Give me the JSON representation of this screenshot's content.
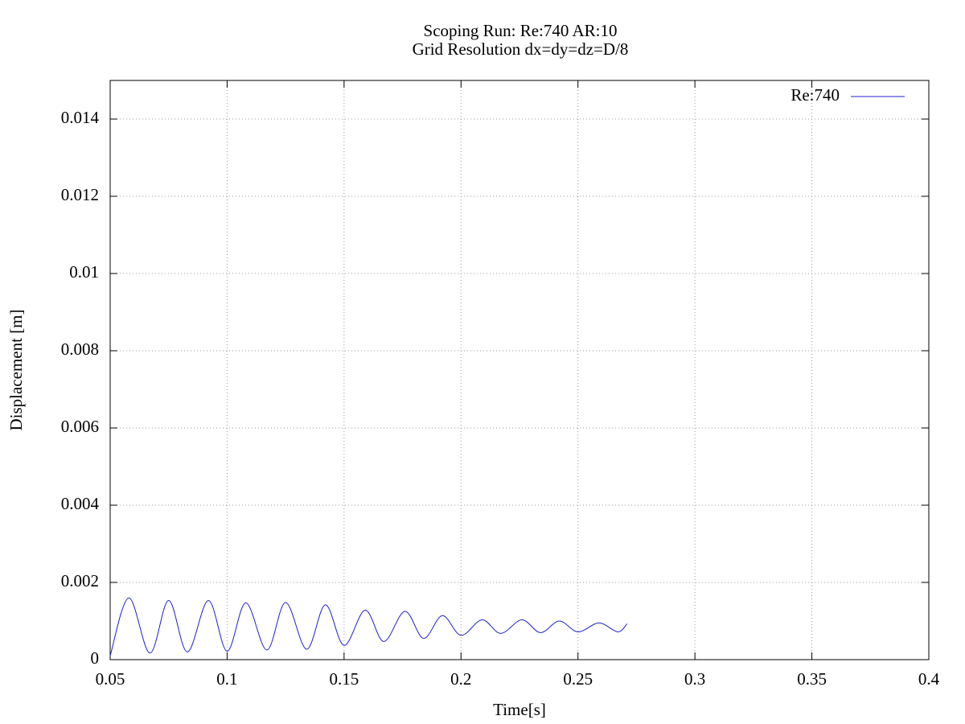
{
  "chart_data": {
    "type": "line",
    "title": "Scoping Run: Re:740  AR:10",
    "subtitle": "Grid Resolution dx=dy=dz=D/8",
    "x_label": "Time[s]",
    "y_label": "Displacement [m]",
    "x": [
      0.05,
      0.058,
      0.067,
      0.075,
      0.083,
      0.092,
      0.1,
      0.108,
      0.117,
      0.125,
      0.134,
      0.142,
      0.15,
      0.159,
      0.167,
      0.176,
      0.184,
      0.192,
      0.2,
      0.209,
      0.217,
      0.226,
      0.234,
      0.242,
      0.25,
      0.259,
      0.267,
      0.271
    ],
    "series": [
      {
        "name": "Re:740",
        "color": "#1f1fd0",
        "values": [
          0.0001,
          0.0016,
          0.00017,
          0.00153,
          0.0002,
          0.00153,
          0.00022,
          0.00147,
          0.00025,
          0.00148,
          0.00027,
          0.00142,
          0.00037,
          0.00128,
          0.00047,
          0.00125,
          0.00055,
          0.00114,
          0.00063,
          0.00103,
          0.00068,
          0.00103,
          0.0007,
          0.001,
          0.00072,
          0.00095,
          0.00072,
          0.00093
        ]
      }
    ],
    "xlim": [
      0.05,
      0.4
    ],
    "xticks": [
      0.05,
      0.1,
      0.15,
      0.2,
      0.25,
      0.3,
      0.35,
      0.4
    ],
    "ylim": [
      0,
      0.015
    ],
    "yticks": [
      0,
      0.002,
      0.004,
      0.006,
      0.008,
      0.01,
      0.012,
      0.014
    ],
    "grid": true,
    "legend": "top-right"
  }
}
